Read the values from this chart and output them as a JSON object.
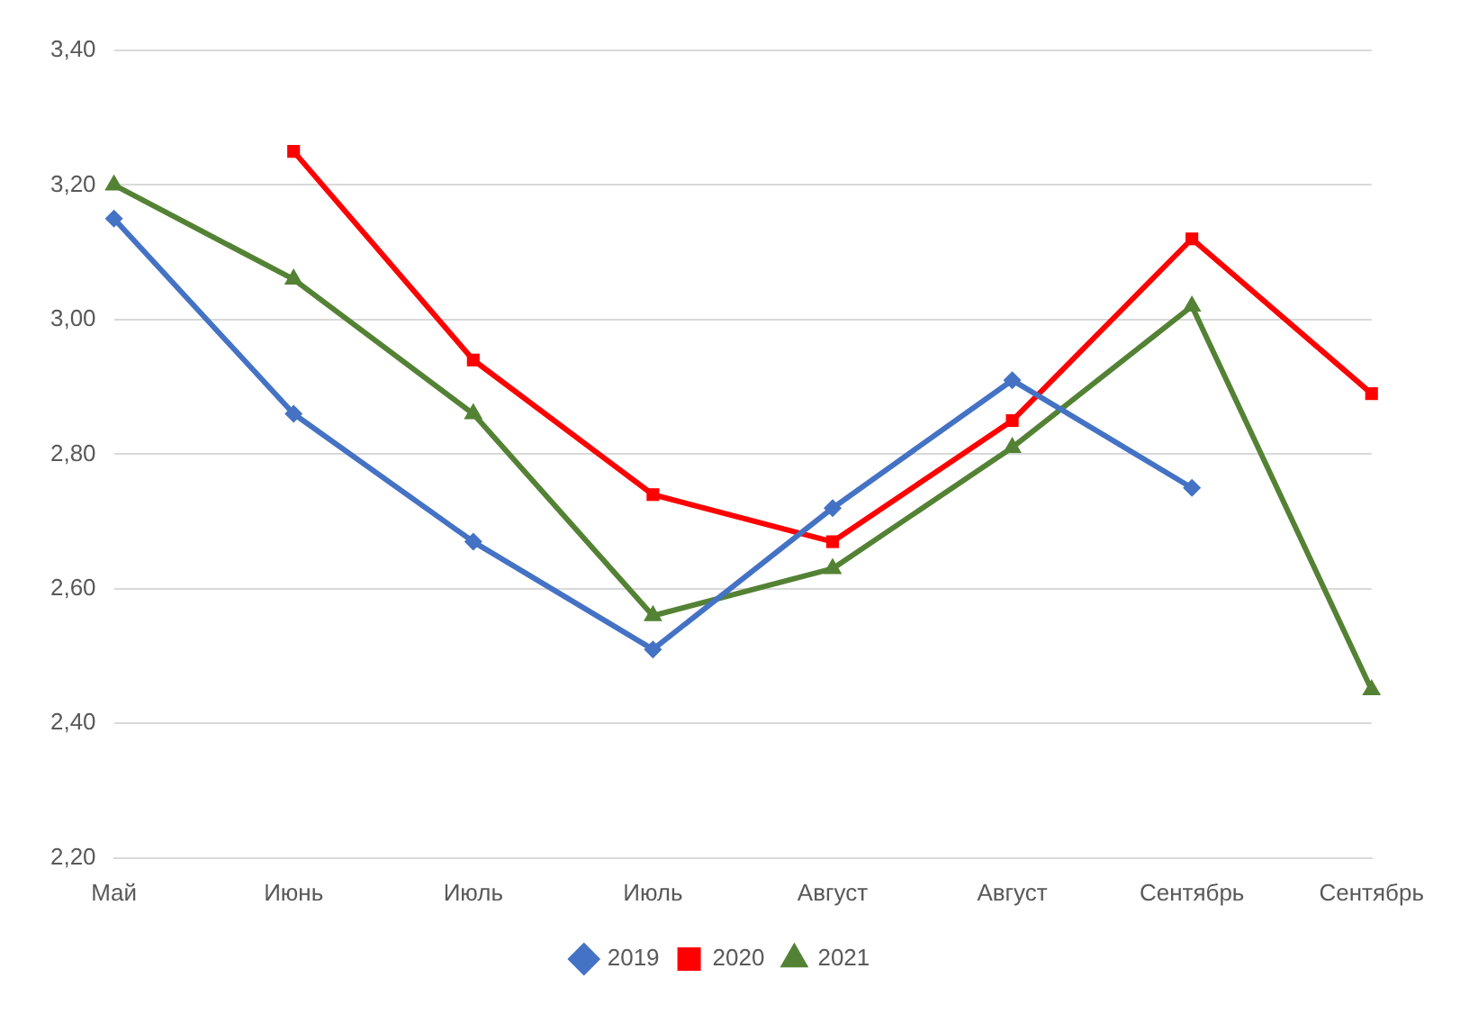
{
  "chart_data": {
    "type": "line",
    "categories": [
      "Май",
      "Июнь",
      "Июль",
      "Июль",
      "Август",
      "Август",
      "Сентябрь",
      "Сентябрь"
    ],
    "series": [
      {
        "name": "2019",
        "color": "#4472c4",
        "marker": "diamond",
        "values": [
          3.15,
          2.86,
          2.67,
          2.51,
          2.72,
          2.91,
          2.75,
          null
        ]
      },
      {
        "name": "2020",
        "color": "#ff0000",
        "marker": "square",
        "values": [
          null,
          3.25,
          2.94,
          2.74,
          2.67,
          2.85,
          3.12,
          2.89
        ]
      },
      {
        "name": "2021",
        "color": "#548235",
        "marker": "triangle",
        "values": [
          3.2,
          3.06,
          2.86,
          2.56,
          2.63,
          2.81,
          3.02,
          2.45
        ]
      }
    ],
    "ylim": [
      2.2,
      3.4
    ],
    "yticks": [
      {
        "value": 2.2,
        "label": "2,20"
      },
      {
        "value": 2.4,
        "label": "2,40"
      },
      {
        "value": 2.6,
        "label": "2,60"
      },
      {
        "value": 2.8,
        "label": "2,80"
      },
      {
        "value": 3.0,
        "label": "3,00"
      },
      {
        "value": 3.2,
        "label": "3,20"
      },
      {
        "value": 3.4,
        "label": "3,40"
      }
    ],
    "grid": "y",
    "legend": "bottom",
    "line_style": "solid"
  }
}
